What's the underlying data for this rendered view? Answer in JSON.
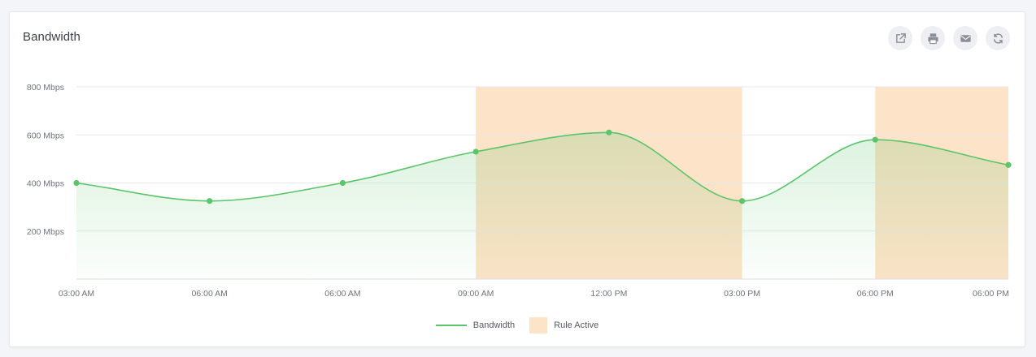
{
  "card": {
    "title": "Bandwidth",
    "actions": [
      {
        "icon": "external-link-icon"
      },
      {
        "icon": "print-icon"
      },
      {
        "icon": "mail-icon"
      },
      {
        "icon": "refresh-icon"
      }
    ]
  },
  "colors": {
    "line": "#5cc56a",
    "rule_band": "#fde3c8",
    "grid": "#e8e9ec",
    "axis_text": "#6f747b"
  },
  "chart_data": {
    "type": "area",
    "title": "Bandwidth",
    "x_labels": [
      "03:00 AM",
      "06:00 AM",
      "06:00 AM",
      "09:00 AM",
      "12:00 PM",
      "03:00 PM",
      "06:00 PM",
      "06:00 PM"
    ],
    "x": [
      0,
      1,
      2,
      3,
      4,
      5,
      6,
      7
    ],
    "series": [
      {
        "name": "Bandwidth",
        "values": [
          400,
          325,
          400,
          530,
          610,
          325,
          580,
          475
        ]
      }
    ],
    "rule_active": [
      {
        "from": 3,
        "to": 5
      },
      {
        "from": 6,
        "to": 7
      }
    ],
    "y_ticks": [
      200,
      400,
      600,
      800
    ],
    "y_tick_labels": [
      "200 Mbps",
      "400 Mbps",
      "600 Mbps",
      "800 Mbps"
    ],
    "ylim": [
      0,
      800
    ],
    "legend": [
      {
        "label": "Bandwidth",
        "kind": "line"
      },
      {
        "label": "Rule Active",
        "kind": "band"
      }
    ],
    "legend_position": "bottom-center"
  }
}
